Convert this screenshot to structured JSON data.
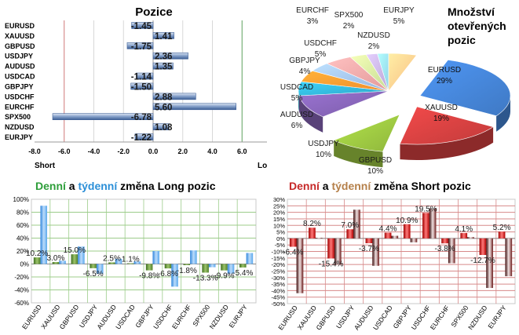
{
  "chart_data": [
    {
      "id": "positions",
      "type": "bar",
      "orientation": "horizontal",
      "title": "Pozice",
      "categories": [
        "EURUSD",
        "XAUUSD",
        "GBPUSD",
        "USDJPY",
        "AUDUSD",
        "USDCAD",
        "GBPJPY",
        "USDCHF",
        "EURCHF",
        "SPX500",
        "NZDUSD",
        "EURJPY"
      ],
      "values": [
        -1.45,
        1.41,
        -1.75,
        2.36,
        1.35,
        -1.14,
        -1.5,
        2.88,
        5.6,
        -6.78,
        1.08,
        -1.22
      ],
      "value_labels": [
        "-1.45",
        "1.41",
        "-1.75",
        "2.36",
        "1.35",
        "-1.14",
        "-1.50",
        "2.88",
        "5.60",
        "-6.78",
        "1.08",
        "-1.22"
      ],
      "xlim": [
        -8,
        8
      ],
      "xticks": [
        "-8.0",
        "-6.0",
        "-4.0",
        "-2.0",
        "0.0",
        "2.0",
        "4.0",
        "6.0",
        "8.0"
      ],
      "left_label": "Short",
      "right_label": "Long",
      "colors": {
        "bar": "#8aa4cc",
        "bar_dark": "#3d5f96",
        "short_line": "#d07878",
        "long_line": "#5fa05f"
      }
    },
    {
      "id": "open-positions",
      "type": "pie",
      "title_lines": [
        "Množství",
        "otevřených",
        "pozic"
      ],
      "slices": [
        {
          "name": "EURUSD",
          "value": 29,
          "label": "29%",
          "color": "#3f79c4"
        },
        {
          "name": "XAUUSD",
          "value": 19,
          "label": "19%",
          "color": "#c23b3b"
        },
        {
          "name": "GBPUSD",
          "value": 10,
          "label": "10%",
          "color": "#8fb63c"
        },
        {
          "name": "USDJPY",
          "value": 10,
          "label": "10%",
          "color": "#7b5ca8"
        },
        {
          "name": "AUDUSD",
          "value": 6,
          "label": "6%",
          "color": "#2fa8c8"
        },
        {
          "name": "USDCAD",
          "value": 5,
          "label": "5%",
          "color": "#f08e2d"
        },
        {
          "name": "GBPJPY",
          "value": 4,
          "label": "4%",
          "color": "#97b4de"
        },
        {
          "name": "USDCHF",
          "value": 5,
          "label": "5%",
          "color": "#e39a9a"
        },
        {
          "name": "EURCHF",
          "value": 3,
          "label": "3%",
          "color": "#c5dc94"
        },
        {
          "name": "SPX500",
          "value": 2,
          "label": "2%",
          "color": "#b8a6d5"
        },
        {
          "name": "NZDUSD",
          "value": 2,
          "label": "2%",
          "color": "#8fd1e6"
        },
        {
          "name": "EURJPY",
          "value": 5,
          "label": "5%",
          "color": "#f8be84"
        }
      ]
    },
    {
      "id": "long-change",
      "type": "bar",
      "title_parts": [
        "Denní",
        " a ",
        "týdenní",
        " změna Long pozic"
      ],
      "title_colors": [
        "#2e9e3a",
        "#000000",
        "#2b8fd8",
        "#000000"
      ],
      "categories": [
        "EURUSD",
        "XAUUSD",
        "GBPUSD",
        "USDJPY",
        "AUDUSD",
        "USDCAD",
        "GBPJPY",
        "USDCHF",
        "EURCHF",
        "SPX500",
        "NZDUSD",
        "EURJPY"
      ],
      "series": [
        {
          "name": "Denní",
          "values": [
            10.2,
            3.0,
            15.0,
            -6.5,
            2.5,
            1.1,
            -9.8,
            -6.8,
            -1.8,
            -13.3,
            -9.9,
            -5.4
          ],
          "color": "#6a9a3a"
        },
        {
          "name": "týdenní",
          "values": [
            90,
            5,
            27,
            -15,
            8,
            4,
            20,
            -35,
            21,
            -5,
            -15,
            17
          ],
          "color": "#5aa8ec"
        }
      ],
      "data_labels": [
        "10.2%",
        "3.0%",
        "15.0%",
        "-6.5%",
        "2.5%",
        "1.1%",
        "-9.8%",
        "-6.8%",
        "-1.8%",
        "-13.3%",
        "-9.9%",
        "-5.4%"
      ],
      "ylim": [
        -60,
        100
      ],
      "yticks": [
        "100%",
        "80%",
        "60%",
        "40%",
        "20%",
        "0%",
        "-20%",
        "-40%",
        "-60%"
      ]
    },
    {
      "id": "short-change",
      "type": "bar",
      "title_parts": [
        "Denní",
        " a ",
        "týdenní",
        " změna Short pozic"
      ],
      "title_colors": [
        "#c62828",
        "#000000",
        "#b5804a",
        "#000000"
      ],
      "categories": [
        "EURUSD",
        "XAUUSD",
        "GBPUSD",
        "USDJPY",
        "AUDUSD",
        "USDCAD",
        "GBPJPY",
        "USDCHF",
        "EURCHF",
        "SPX500",
        "NZDUSD",
        "EURJPY"
      ],
      "series": [
        {
          "name": "Denní",
          "values": [
            -6.4,
            8.2,
            -15.4,
            7.0,
            -3.7,
            4.4,
            10.9,
            19.5,
            -3.8,
            4.1,
            -12.7,
            5.2
          ],
          "color": "#cc1010"
        },
        {
          "name": "týdenní",
          "values": [
            -42,
            0.5,
            -20,
            22,
            -21,
            2,
            -3,
            23,
            -19,
            1,
            -38,
            -29
          ],
          "color": "#7a2a2a"
        }
      ],
      "data_labels": [
        "-6.4%",
        "8.2%",
        "-15.4%",
        "7.0%",
        "-3.7%",
        "4.4%",
        "10.9%",
        "19.5%",
        "-3.8%",
        "4.1%",
        "-12.7%",
        "5.2%"
      ],
      "ylim": [
        -50,
        30
      ],
      "yticks": [
        "30%",
        "25%",
        "20%",
        "15%",
        "10%",
        "5%",
        "0%",
        "-5%",
        "-10%",
        "-15%",
        "-20%",
        "-25%",
        "-30%",
        "-35%",
        "-40%",
        "-45%",
        "-50%"
      ]
    }
  ]
}
